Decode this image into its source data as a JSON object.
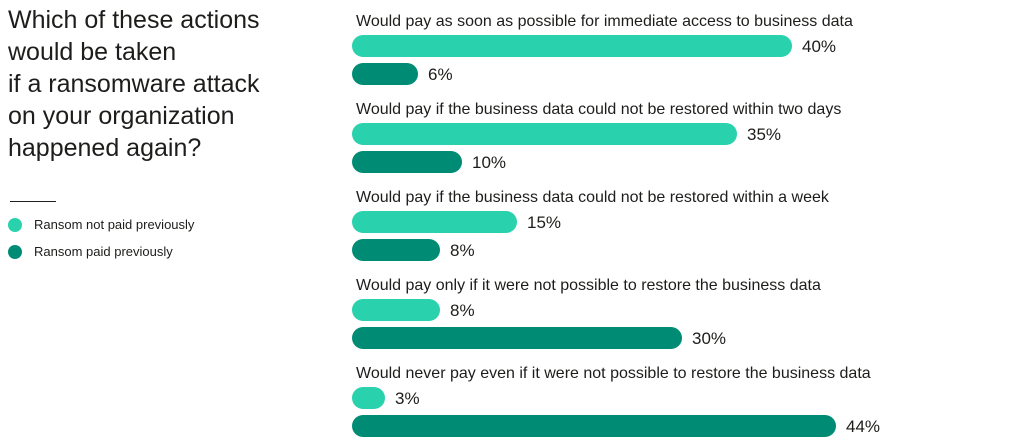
{
  "title": "Which of these actions\nwould be taken\nif a ransomware attack\non your organization\nhappened again?",
  "legend": [
    {
      "label": "Ransom not paid previously",
      "color": "#2ad1ad"
    },
    {
      "label": "Ransom paid previously",
      "color": "#008c74"
    }
  ],
  "chart_data": {
    "type": "bar",
    "orientation": "horizontal",
    "title": "Which of these actions would be taken if a ransomware attack on your organization happened again?",
    "categories": [
      "Would pay as soon as possible for immediate access to business data",
      "Would pay if the business data could not be restored within two days",
      "Would pay if the business data could not be restored within a week",
      "Would pay only if it were not possible to restore the business data",
      "Would never pay even if it were not possible to restore the business data"
    ],
    "series": [
      {
        "name": "Ransom not paid previously",
        "color": "#2ad1ad",
        "values": [
          40,
          35,
          15,
          8,
          3
        ]
      },
      {
        "name": "Ransom paid previously",
        "color": "#008c74",
        "values": [
          6,
          10,
          8,
          30,
          44
        ]
      }
    ],
    "value_suffix": "%",
    "xlim": [
      0,
      50
    ],
    "grid": false,
    "legend_position": "left"
  }
}
